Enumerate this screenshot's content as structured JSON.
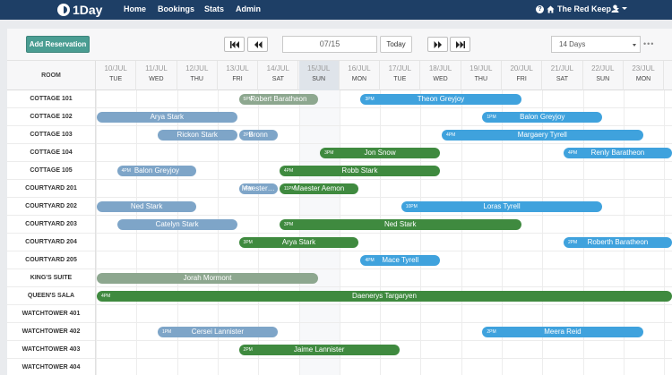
{
  "nav": {
    "brand": "1Day",
    "links": [
      "Home",
      "Bookings",
      "Stats",
      "Admin"
    ],
    "property": "The Red Keep"
  },
  "toolbar": {
    "add_label": "Add Reservation",
    "date_value": "07/15",
    "today_label": "Today",
    "range_value": "14 Days"
  },
  "grid": {
    "room_header": "ROOM",
    "days": [
      {
        "date": "10/JUL",
        "name": "TUE"
      },
      {
        "date": "11/JUL",
        "name": "WED"
      },
      {
        "date": "12/JUL",
        "name": "THU"
      },
      {
        "date": "13/JUL",
        "name": "FRI"
      },
      {
        "date": "14/JUL",
        "name": "SAT"
      },
      {
        "date": "15/JUL",
        "name": "SUN"
      },
      {
        "date": "16/JUL",
        "name": "MON"
      },
      {
        "date": "17/JUL",
        "name": "TUE"
      },
      {
        "date": "18/JUL",
        "name": "WED"
      },
      {
        "date": "19/JUL",
        "name": "THU"
      },
      {
        "date": "20/JUL",
        "name": "FRI"
      },
      {
        "date": "21/JUL",
        "name": "SAT"
      },
      {
        "date": "22/JUL",
        "name": "SUN"
      },
      {
        "date": "23/JUL",
        "name": "MON"
      }
    ],
    "today_index": 5,
    "rooms": [
      "COTTAGE 101",
      "COTTAGE 102",
      "COTTAGE 103",
      "COTTAGE 104",
      "COTTAGE 105",
      "COURTYARD 201",
      "COURTYARD 202",
      "COURTYARD 203",
      "COURTYARD 204",
      "COURTYARD 205",
      "KING'S SUITE",
      "QUEEN'S SALA",
      "WATCHTOWER 401",
      "WATCHTOWER 402",
      "WATCHTOWER 403",
      "WATCHTOWER 404"
    ]
  },
  "reservations": [
    {
      "room": 0,
      "start": 3.5,
      "end": 5.5,
      "time": "5PM",
      "guest": "Robert Baratheon",
      "color": "sage"
    },
    {
      "room": 0,
      "start": 6.5,
      "end": 10.5,
      "time": "3PM",
      "guest": "Theon Greyjoy",
      "color": "sky"
    },
    {
      "room": 1,
      "start": 0,
      "end": 3.5,
      "time": "",
      "guest": "Arya Stark",
      "color": "steel"
    },
    {
      "room": 1,
      "start": 9.5,
      "end": 12.5,
      "time": "1PM",
      "guest": "Balon Greyjoy",
      "color": "sky"
    },
    {
      "room": 2,
      "start": 1.5,
      "end": 3.5,
      "time": "",
      "guest": "Rickon Stark",
      "color": "steel"
    },
    {
      "room": 2,
      "start": 3.5,
      "end": 4.5,
      "time": "2PM",
      "guest": "Bronn",
      "color": "steel"
    },
    {
      "room": 2,
      "start": 8.5,
      "end": 13.5,
      "time": "4PM",
      "guest": "Margaery Tyrell",
      "color": "sky"
    },
    {
      "room": 3,
      "start": 5.5,
      "end": 8.5,
      "time": "3PM",
      "guest": "Jon Snow",
      "color": "green"
    },
    {
      "room": 3,
      "start": 11.5,
      "end": 14.5,
      "time": "4PM",
      "guest": "Renly Baratheon",
      "color": "sky"
    },
    {
      "room": 4,
      "start": 0.5,
      "end": 2.5,
      "time": "4PM",
      "guest": "Balon Greyjoy",
      "color": "steel"
    },
    {
      "room": 4,
      "start": 4.5,
      "end": 8.5,
      "time": "4PM",
      "guest": "Robb Stark",
      "color": "green"
    },
    {
      "room": 5,
      "start": 3.5,
      "end": 4.5,
      "time": "4PM",
      "guest": "Maester…",
      "color": "steel"
    },
    {
      "room": 5,
      "start": 4.5,
      "end": 6.5,
      "time": "11PM",
      "guest": "Maester Aemon",
      "color": "green"
    },
    {
      "room": 6,
      "start": 0,
      "end": 2.5,
      "time": "",
      "guest": "Ned Stark",
      "color": "steel"
    },
    {
      "room": 6,
      "start": 7.5,
      "end": 12.5,
      "time": "10PM",
      "guest": "Loras Tyrell",
      "color": "sky"
    },
    {
      "room": 7,
      "start": 0.5,
      "end": 3.5,
      "time": "",
      "guest": "Catelyn Stark",
      "color": "steel"
    },
    {
      "room": 7,
      "start": 4.5,
      "end": 10.5,
      "time": "3PM",
      "guest": "Ned Stark",
      "color": "green"
    },
    {
      "room": 8,
      "start": 3.5,
      "end": 6.5,
      "time": "3PM",
      "guest": "Arya Stark",
      "color": "green"
    },
    {
      "room": 8,
      "start": 11.5,
      "end": 14.5,
      "time": "2PM",
      "guest": "Roberth Baratheon",
      "color": "sky"
    },
    {
      "room": 9,
      "start": 6.5,
      "end": 8.5,
      "time": "4PM",
      "guest": "Mace Tyrell",
      "color": "sky"
    },
    {
      "room": 10,
      "start": 0,
      "end": 5.5,
      "time": "",
      "guest": "Jorah Mormont",
      "color": "sage"
    },
    {
      "room": 11,
      "start": 0,
      "end": 14.5,
      "time": "4PM",
      "guest": "Daenerys Targaryen",
      "color": "green"
    },
    {
      "room": 13,
      "start": 1.5,
      "end": 4.5,
      "time": "1PM",
      "guest": "Cersei Lannister",
      "color": "steel"
    },
    {
      "room": 13,
      "start": 9.5,
      "end": 13.5,
      "time": "2PM",
      "guest": "Meera Reid",
      "color": "sky"
    },
    {
      "room": 14,
      "start": 3.5,
      "end": 7.5,
      "time": "2PM",
      "guest": "Jaime Lannister",
      "color": "green"
    }
  ]
}
